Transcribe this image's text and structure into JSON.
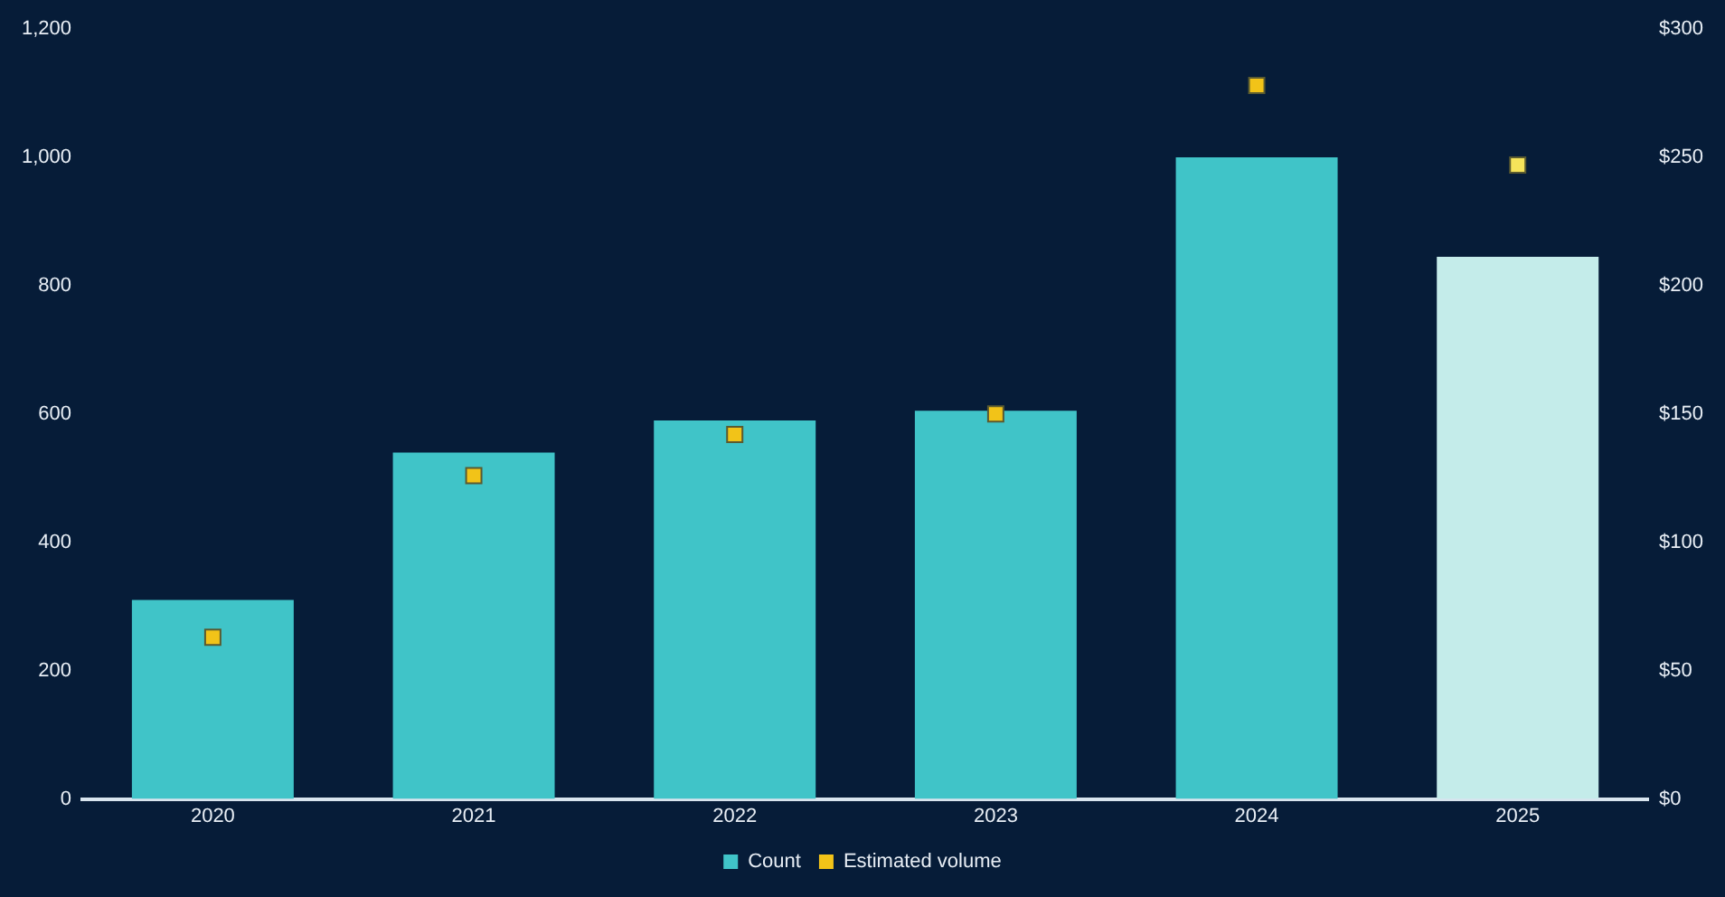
{
  "chart_data": {
    "type": "bar",
    "categories": [
      "2020",
      "2021",
      "2022",
      "2023",
      "2024",
      "2025"
    ],
    "series": [
      {
        "name": "Count",
        "color": "#40c4c8",
        "colors": [
          "#40c4c8",
          "#40c4c8",
          "#40c4c8",
          "#40c4c8",
          "#40c4c8",
          "#c4ecea"
        ],
        "values": [
          310,
          540,
          590,
          605,
          1000,
          845
        ]
      },
      {
        "name": "Estimated volume",
        "type": "scatter",
        "axis": "y2",
        "color": "#f2c318",
        "colors": [
          "#f2c318",
          "#f2c318",
          "#f2c318",
          "#f2c318",
          "#f2c318",
          "#f5e35a"
        ],
        "values": [
          63,
          126,
          142,
          150,
          278,
          247
        ]
      }
    ],
    "ylim": [
      0,
      1200
    ],
    "yticks": [
      0,
      200,
      400,
      600,
      800,
      {
        "value": 1000,
        "label": "1,000"
      },
      {
        "value": 1200,
        "label": "1,200"
      }
    ],
    "y2lim": [
      0,
      300
    ],
    "y2ticks": [
      {
        "value": 0,
        "label": "$0"
      },
      {
        "value": 50,
        "label": "$50"
      },
      {
        "value": 100,
        "label": "$100"
      },
      {
        "value": 150,
        "label": "$150"
      },
      {
        "value": 200,
        "label": "$200"
      },
      {
        "value": 250,
        "label": "$250"
      },
      {
        "value": 300,
        "label": "$300"
      }
    ],
    "grid": false,
    "legend": "bottom",
    "marker": "square"
  }
}
